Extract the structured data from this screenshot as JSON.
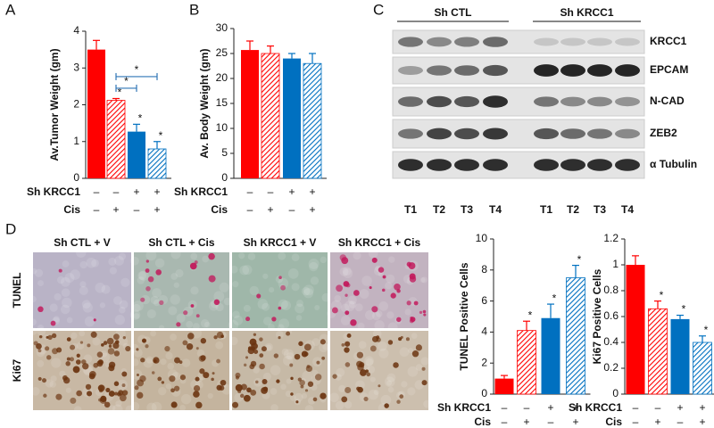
{
  "panels": [
    "A",
    "B",
    "C",
    "D"
  ],
  "chart_data": [
    {
      "type": "bar",
      "y_label": "Av.Tumor Weight (gm)",
      "values": [
        3.5,
        2.12,
        1.27,
        0.8
      ],
      "errors": [
        0.25,
        0.05,
        0.2,
        0.2
      ],
      "colors": [
        "#ff0000",
        "#ff0000",
        "#0070c0",
        "#0070c0"
      ],
      "hatched": [
        false,
        true,
        false,
        true
      ],
      "stars": [
        null,
        "*",
        "*",
        "*"
      ],
      "comparisons": [
        {
          "between": [
            1,
            2
          ],
          "text": "*"
        },
        {
          "between": [
            1,
            3
          ],
          "text": "*"
        }
      ],
      "ylim": [
        0,
        4
      ],
      "yticks": [
        0,
        1,
        2,
        3,
        4
      ],
      "conditions": [
        {
          "name": "Sh KRCC1",
          "values": [
            "–",
            "–",
            "+",
            "+"
          ]
        },
        {
          "name": "Cis",
          "values": [
            "–",
            "+",
            "–",
            "+"
          ]
        }
      ]
    },
    {
      "type": "bar",
      "y_label": "Av. Body Weight (gm)",
      "values": [
        25.7,
        25,
        24,
        23
      ],
      "errors": [
        1.8,
        1.5,
        1,
        2
      ],
      "colors": [
        "#ff0000",
        "#ff0000",
        "#0070c0",
        "#0070c0"
      ],
      "hatched": [
        false,
        true,
        false,
        true
      ],
      "ylim": [
        0,
        30
      ],
      "yticks": [
        0,
        5,
        10,
        15,
        20,
        25,
        30
      ],
      "conditions": [
        {
          "name": "Sh KRCC1",
          "values": [
            "–",
            "–",
            "+",
            "+"
          ]
        },
        {
          "name": "Cis",
          "values": [
            "–",
            "+",
            "–",
            "+"
          ]
        }
      ]
    },
    {
      "type": "bar",
      "y_label": "TUNEL Positive Cells",
      "values": [
        1,
        4.1,
        4.9,
        7.5
      ],
      "errors": [
        0.2,
        0.6,
        0.9,
        0.8
      ],
      "colors": [
        "#ff0000",
        "#ff0000",
        "#0070c0",
        "#0070c0"
      ],
      "hatched": [
        false,
        true,
        false,
        true
      ],
      "stars": [
        null,
        "*",
        "*",
        "*"
      ],
      "ylim": [
        0,
        10
      ],
      "yticks": [
        0,
        2,
        4,
        6,
        8,
        10
      ],
      "conditions": [
        {
          "name": "Sh KRCC1",
          "values": [
            "–",
            "–",
            "+",
            "+"
          ]
        },
        {
          "name": "Cis",
          "values": [
            "–",
            "+",
            "–",
            "+"
          ]
        }
      ]
    },
    {
      "type": "bar",
      "y_label": "Ki67 Positive Cells",
      "values": [
        1,
        0.66,
        0.58,
        0.4
      ],
      "errors": [
        0.07,
        0.06,
        0.03,
        0.05
      ],
      "colors": [
        "#ff0000",
        "#ff0000",
        "#0070c0",
        "#0070c0"
      ],
      "hatched": [
        false,
        true,
        false,
        true
      ],
      "stars": [
        null,
        "*",
        "*",
        "*"
      ],
      "ylim": [
        0,
        1.2
      ],
      "yticks": [
        0,
        0.2,
        0.4,
        0.6,
        0.8,
        1,
        1.2
      ],
      "conditions": [
        {
          "name": "Sh KRCC1",
          "values": [
            "–",
            "–",
            "+",
            "+"
          ]
        },
        {
          "name": "Cis",
          "values": [
            "–",
            "+",
            "–",
            "+"
          ]
        }
      ]
    }
  ],
  "blot": {
    "groups": [
      {
        "label": "Sh CTL",
        "lanes": [
          "T1",
          "T2",
          "T3",
          "T4"
        ]
      },
      {
        "label": "Sh KRCC1",
        "lanes": [
          "T1",
          "T2",
          "T3",
          "T4"
        ]
      }
    ],
    "rows": [
      "KRCC1",
      "EPCAM",
      "N-CAD",
      "ZEB2",
      "α Tubulin"
    ]
  },
  "micrographs": {
    "columns": [
      "Sh CTL + V",
      "Sh CTL + Cis",
      "Sh KRCC1 + V",
      "Sh KRCC1 + Cis"
    ],
    "rows": [
      "TUNEL",
      "Ki67"
    ]
  }
}
